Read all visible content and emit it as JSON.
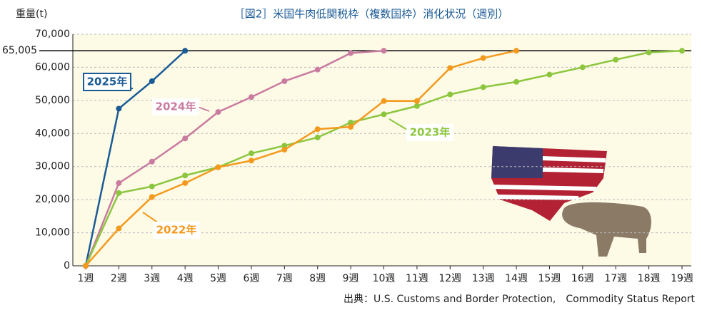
{
  "chart_data": {
    "type": "line",
    "title": "［図2］米国牛肉低関税枠（複数国枠）消化状況（週別）",
    "y_label": "重量(t)",
    "source": "出典：U.S. Customs and Border Protection,　Commodity Status Report",
    "categories": [
      "1週",
      "2週",
      "3週",
      "4週",
      "5週",
      "6週",
      "7週",
      "8週",
      "9週",
      "10週",
      "11週",
      "12週",
      "13週",
      "14週",
      "15週",
      "16週",
      "17週",
      "18週",
      "19週"
    ],
    "series": [
      {
        "name": "2025年",
        "color": "#1a5a96",
        "values": [
          0,
          47500,
          55800,
          65005,
          null,
          null,
          null,
          null,
          null,
          null,
          null,
          null,
          null,
          null,
          null,
          null,
          null,
          null,
          null
        ]
      },
      {
        "name": "2024年",
        "color": "#c97ba0",
        "values": [
          0,
          25000,
          31500,
          38500,
          46500,
          51000,
          55800,
          59300,
          64300,
          65005,
          null,
          null,
          null,
          null,
          null,
          null,
          null,
          null,
          null
        ]
      },
      {
        "name": "2023年",
        "color": "#8cc63f",
        "values": [
          0,
          22000,
          24000,
          27300,
          29800,
          34000,
          36300,
          38800,
          43300,
          45800,
          48300,
          51800,
          54000,
          55600,
          57800,
          60000,
          62300,
          64500,
          65005
        ]
      },
      {
        "name": "2022年",
        "color": "#f39a1e",
        "values": [
          0,
          11300,
          20800,
          25000,
          29800,
          31800,
          35100,
          41300,
          42000,
          49800,
          49800,
          59800,
          62800,
          65005,
          null,
          null,
          null,
          null,
          null
        ]
      }
    ],
    "reference_line": {
      "value": 65005,
      "label": "65,005"
    },
    "ylim": [
      0,
      70000
    ],
    "yticks": [
      0,
      {
        "value": 10000,
        "label": "10,000"
      },
      {
        "value": 20000,
        "label": "20,000"
      },
      {
        "value": 30000,
        "label": "30,000"
      },
      {
        "value": 40000,
        "label": "40,000"
      },
      {
        "value": 50000,
        "label": "50,000"
      },
      {
        "value": 60000,
        "label": "60,000"
      },
      {
        "value": 70000,
        "label": "70,000"
      }
    ],
    "grid": true
  }
}
